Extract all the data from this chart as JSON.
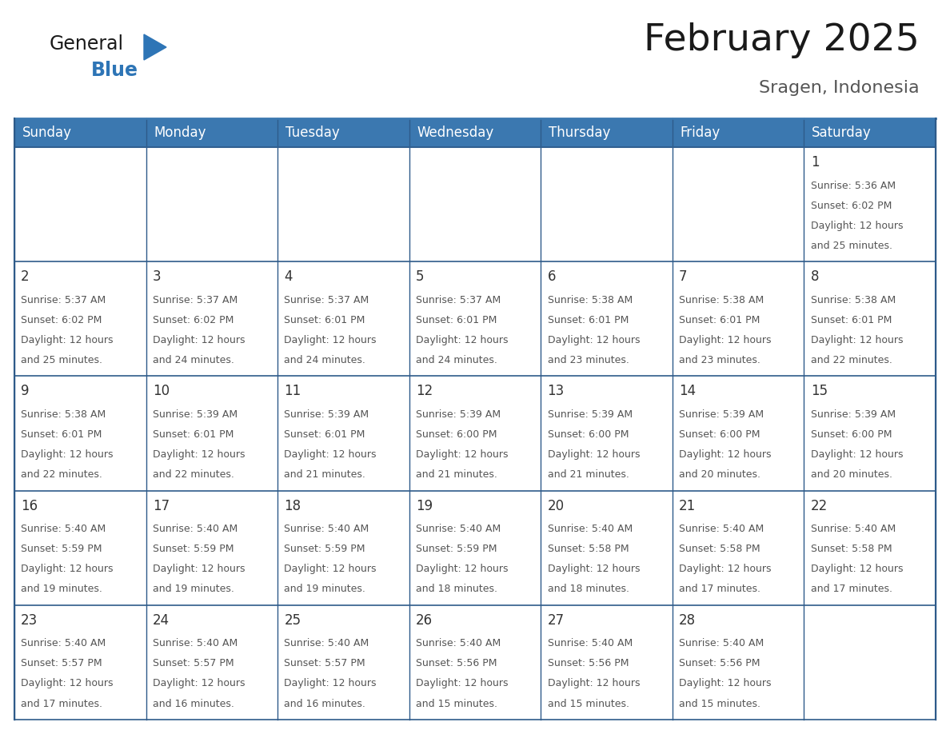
{
  "title": "February 2025",
  "subtitle": "Sragen, Indonesia",
  "header_bg": "#3B78B0",
  "header_text_color": "#FFFFFF",
  "border_color": "#2E5B8A",
  "row_border_color": "#3B78B0",
  "day_number_color": "#333333",
  "info_text_color": "#555555",
  "days_of_week": [
    "Sunday",
    "Monday",
    "Tuesday",
    "Wednesday",
    "Thursday",
    "Friday",
    "Saturday"
  ],
  "calendar": [
    [
      null,
      null,
      null,
      null,
      null,
      null,
      1
    ],
    [
      2,
      3,
      4,
      5,
      6,
      7,
      8
    ],
    [
      9,
      10,
      11,
      12,
      13,
      14,
      15
    ],
    [
      16,
      17,
      18,
      19,
      20,
      21,
      22
    ],
    [
      23,
      24,
      25,
      26,
      27,
      28,
      null
    ]
  ],
  "cell_data": {
    "1": {
      "sunrise": "5:36 AM",
      "sunset": "6:02 PM",
      "daylight_l1": "Daylight: 12 hours",
      "daylight_l2": "and 25 minutes."
    },
    "2": {
      "sunrise": "5:37 AM",
      "sunset": "6:02 PM",
      "daylight_l1": "Daylight: 12 hours",
      "daylight_l2": "and 25 minutes."
    },
    "3": {
      "sunrise": "5:37 AM",
      "sunset": "6:02 PM",
      "daylight_l1": "Daylight: 12 hours",
      "daylight_l2": "and 24 minutes."
    },
    "4": {
      "sunrise": "5:37 AM",
      "sunset": "6:01 PM",
      "daylight_l1": "Daylight: 12 hours",
      "daylight_l2": "and 24 minutes."
    },
    "5": {
      "sunrise": "5:37 AM",
      "sunset": "6:01 PM",
      "daylight_l1": "Daylight: 12 hours",
      "daylight_l2": "and 24 minutes."
    },
    "6": {
      "sunrise": "5:38 AM",
      "sunset": "6:01 PM",
      "daylight_l1": "Daylight: 12 hours",
      "daylight_l2": "and 23 minutes."
    },
    "7": {
      "sunrise": "5:38 AM",
      "sunset": "6:01 PM",
      "daylight_l1": "Daylight: 12 hours",
      "daylight_l2": "and 23 minutes."
    },
    "8": {
      "sunrise": "5:38 AM",
      "sunset": "6:01 PM",
      "daylight_l1": "Daylight: 12 hours",
      "daylight_l2": "and 22 minutes."
    },
    "9": {
      "sunrise": "5:38 AM",
      "sunset": "6:01 PM",
      "daylight_l1": "Daylight: 12 hours",
      "daylight_l2": "and 22 minutes."
    },
    "10": {
      "sunrise": "5:39 AM",
      "sunset": "6:01 PM",
      "daylight_l1": "Daylight: 12 hours",
      "daylight_l2": "and 22 minutes."
    },
    "11": {
      "sunrise": "5:39 AM",
      "sunset": "6:01 PM",
      "daylight_l1": "Daylight: 12 hours",
      "daylight_l2": "and 21 minutes."
    },
    "12": {
      "sunrise": "5:39 AM",
      "sunset": "6:00 PM",
      "daylight_l1": "Daylight: 12 hours",
      "daylight_l2": "and 21 minutes."
    },
    "13": {
      "sunrise": "5:39 AM",
      "sunset": "6:00 PM",
      "daylight_l1": "Daylight: 12 hours",
      "daylight_l2": "and 21 minutes."
    },
    "14": {
      "sunrise": "5:39 AM",
      "sunset": "6:00 PM",
      "daylight_l1": "Daylight: 12 hours",
      "daylight_l2": "and 20 minutes."
    },
    "15": {
      "sunrise": "5:39 AM",
      "sunset": "6:00 PM",
      "daylight_l1": "Daylight: 12 hours",
      "daylight_l2": "and 20 minutes."
    },
    "16": {
      "sunrise": "5:40 AM",
      "sunset": "5:59 PM",
      "daylight_l1": "Daylight: 12 hours",
      "daylight_l2": "and 19 minutes."
    },
    "17": {
      "sunrise": "5:40 AM",
      "sunset": "5:59 PM",
      "daylight_l1": "Daylight: 12 hours",
      "daylight_l2": "and 19 minutes."
    },
    "18": {
      "sunrise": "5:40 AM",
      "sunset": "5:59 PM",
      "daylight_l1": "Daylight: 12 hours",
      "daylight_l2": "and 19 minutes."
    },
    "19": {
      "sunrise": "5:40 AM",
      "sunset": "5:59 PM",
      "daylight_l1": "Daylight: 12 hours",
      "daylight_l2": "and 18 minutes."
    },
    "20": {
      "sunrise": "5:40 AM",
      "sunset": "5:58 PM",
      "daylight_l1": "Daylight: 12 hours",
      "daylight_l2": "and 18 minutes."
    },
    "21": {
      "sunrise": "5:40 AM",
      "sunset": "5:58 PM",
      "daylight_l1": "Daylight: 12 hours",
      "daylight_l2": "and 17 minutes."
    },
    "22": {
      "sunrise": "5:40 AM",
      "sunset": "5:58 PM",
      "daylight_l1": "Daylight: 12 hours",
      "daylight_l2": "and 17 minutes."
    },
    "23": {
      "sunrise": "5:40 AM",
      "sunset": "5:57 PM",
      "daylight_l1": "Daylight: 12 hours",
      "daylight_l2": "and 17 minutes."
    },
    "24": {
      "sunrise": "5:40 AM",
      "sunset": "5:57 PM",
      "daylight_l1": "Daylight: 12 hours",
      "daylight_l2": "and 16 minutes."
    },
    "25": {
      "sunrise": "5:40 AM",
      "sunset": "5:57 PM",
      "daylight_l1": "Daylight: 12 hours",
      "daylight_l2": "and 16 minutes."
    },
    "26": {
      "sunrise": "5:40 AM",
      "sunset": "5:56 PM",
      "daylight_l1": "Daylight: 12 hours",
      "daylight_l2": "and 15 minutes."
    },
    "27": {
      "sunrise": "5:40 AM",
      "sunset": "5:56 PM",
      "daylight_l1": "Daylight: 12 hours",
      "daylight_l2": "and 15 minutes."
    },
    "28": {
      "sunrise": "5:40 AM",
      "sunset": "5:56 PM",
      "daylight_l1": "Daylight: 12 hours",
      "daylight_l2": "and 15 minutes."
    }
  },
  "title_fontsize": 34,
  "subtitle_fontsize": 16,
  "header_fontsize": 12,
  "day_num_fontsize": 12,
  "info_fontsize": 9,
  "logo_general_color": "#1a1a1a",
  "logo_blue_color": "#2E75B6",
  "fig_width": 11.88,
  "fig_height": 9.18,
  "dpi": 100
}
